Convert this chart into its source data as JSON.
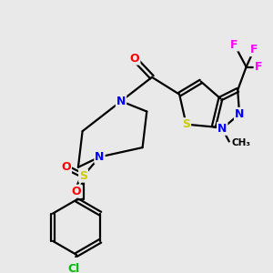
{
  "background_color": "#e9e9e9",
  "atom_colors": {
    "C": "#000000",
    "N": "#0000ff",
    "O": "#ff0000",
    "S": "#cccc00",
    "F": "#ff00ff",
    "Cl": "#00bb00"
  },
  "figsize": [
    3.0,
    3.0
  ],
  "dpi": 100,
  "lw": 1.6,
  "font_size": 9
}
